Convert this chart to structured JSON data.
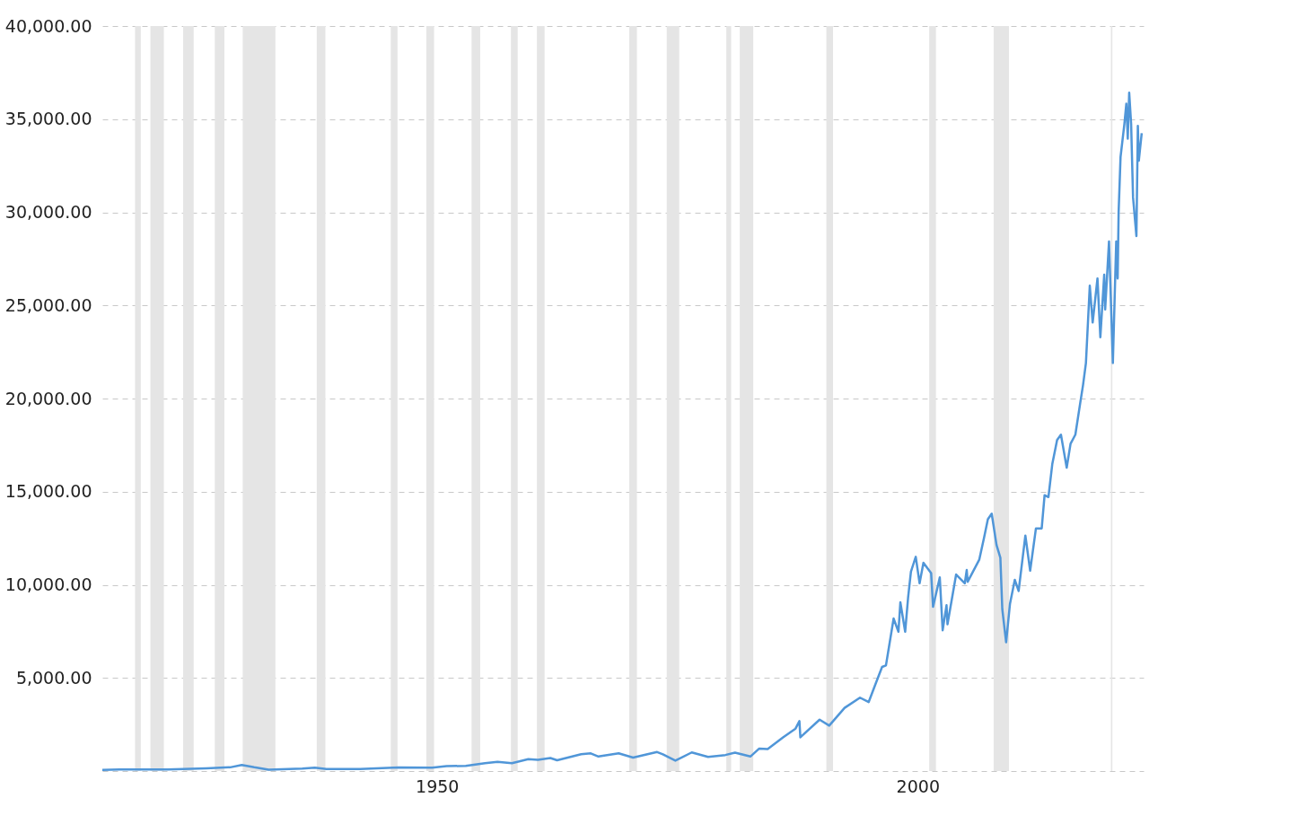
{
  "chart_data": {
    "type": "line",
    "x": [
      1915.2,
      1917,
      1919,
      1922,
      1926,
      1928.5,
      1929.7,
      1931,
      1932.5,
      1936,
      1937.3,
      1938.5,
      1942,
      1946,
      1949.5,
      1951,
      1953,
      1955,
      1956.3,
      1957.8,
      1959.5,
      1960.5,
      1961.8,
      1962.5,
      1965,
      1966,
      1966.8,
      1968.9,
      1970.4,
      1972.9,
      1973.5,
      1974.8,
      1976.5,
      1978.2,
      1980,
      1981,
      1982.6,
      1983.5,
      1984.4,
      1986.0,
      1987.3,
      1987.7,
      1987.8,
      1989.8,
      1990.8,
      1992.4,
      1994.0,
      1994.9,
      1995.6,
      1996.3,
      1996.7,
      1997.5,
      1998.0,
      1998.2,
      1998.7,
      1999.0,
      1999.3,
      1999.8,
      2000.2,
      2000.6,
      2001.4,
      2001.6,
      2002.3,
      2002.6,
      2003.0,
      2003.1,
      2004.0,
      2004.9,
      2005.1,
      2005.2,
      2006.4,
      2006.9,
      2007.3,
      2007.7,
      2008.2,
      2008.6,
      2008.8,
      2009.2,
      2009.6,
      2010.1,
      2010.5,
      2011.2,
      2011.7,
      2012.3,
      2012.9,
      2013.2,
      2013.6,
      2014.0,
      2014.5,
      2014.9,
      2015.5,
      2015.9,
      2016.4,
      2016.9,
      2017.2,
      2017.5,
      2017.9,
      2018.2,
      2018.7,
      2019.0,
      2019.4,
      2019.5,
      2019.9,
      2020.3,
      2020.5,
      2020.65,
      2020.8,
      2020.9,
      2021.1,
      2021.5,
      2021.7,
      2021.85,
      2022.0,
      2022.2,
      2022.4,
      2022.75,
      2022.9,
      2023.0,
      2023.3
    ],
    "series": [
      {
        "color": "#5096d8",
        "values": [
          60,
          80,
          90,
          80,
          140,
          200,
          330,
          200,
          70,
          130,
          180,
          110,
          110,
          190,
          180,
          260,
          280,
          420,
          490,
          420,
          640,
          600,
          700,
          580,
          900,
          950,
          780,
          950,
          720,
          1020,
          900,
          560,
          1000,
          760,
          860,
          990,
          780,
          1200,
          1180,
          1810,
          2280,
          2680,
          1810,
          2760,
          2440,
          3390,
          3940,
          3700,
          4650,
          5590,
          5670,
          8190,
          7480,
          9060,
          7480,
          9290,
          10710,
          11500,
          10080,
          11180,
          10630,
          8820,
          10400,
          7560,
          8900,
          7880,
          10550,
          10080,
          10790,
          10160,
          11340,
          12520,
          13520,
          13820,
          12140,
          11450,
          8690,
          6910,
          8980,
          10270,
          9670,
          12640,
          10760,
          13030,
          13030,
          14810,
          14710,
          16480,
          17770,
          18060,
          16290,
          17570,
          18060,
          19740,
          20730,
          21910,
          26060,
          24080,
          26450,
          23290,
          26650,
          24780,
          28430,
          21910,
          25660,
          28430,
          26450,
          30000,
          32970,
          34740,
          35830,
          33950,
          36420,
          34740,
          30800,
          28720,
          34640,
          32770,
          34250
        ]
      }
    ],
    "xlim": [
      1915.2,
      2023.5
    ],
    "xticks": [
      1950,
      2000
    ],
    "ylim": [
      0,
      40000
    ],
    "yticks": [
      {
        "value": 0,
        "label": null
      },
      {
        "value": 5000,
        "label": "5,000.00"
      },
      {
        "value": 10000,
        "label": "10,000.00"
      },
      {
        "value": 15000,
        "label": "15,000.00"
      },
      {
        "value": 20000,
        "label": "20,000.00"
      },
      {
        "value": 25000,
        "label": "25,000.00"
      },
      {
        "value": 30000,
        "label": "30,000.00"
      },
      {
        "value": 35000,
        "label": "35,000.00"
      },
      {
        "value": 40000,
        "label": "40,000.00"
      }
    ],
    "grid": "y",
    "bands": [
      {
        "axis": "x",
        "from": 1918.6,
        "to": 1919.2,
        "color": "#e5e5e5"
      },
      {
        "axis": "x",
        "from": 1920.2,
        "to": 1921.6,
        "color": "#e5e5e5"
      },
      {
        "axis": "x",
        "from": 1923.6,
        "to": 1924.7,
        "color": "#e5e5e5"
      },
      {
        "axis": "x",
        "from": 1926.9,
        "to": 1927.9,
        "color": "#e5e5e5"
      },
      {
        "axis": "x",
        "from": 1929.8,
        "to": 1933.2,
        "color": "#e5e5e5"
      },
      {
        "axis": "x",
        "from": 1937.5,
        "to": 1938.4,
        "color": "#e5e5e5"
      },
      {
        "axis": "x",
        "from": 1945.2,
        "to": 1945.9,
        "color": "#e5e5e5"
      },
      {
        "axis": "x",
        "from": 1948.9,
        "to": 1949.7,
        "color": "#e5e5e5"
      },
      {
        "axis": "x",
        "from": 1953.6,
        "to": 1954.5,
        "color": "#e5e5e5"
      },
      {
        "axis": "x",
        "from": 1957.7,
        "to": 1958.4,
        "color": "#e5e5e5"
      },
      {
        "axis": "x",
        "from": 1960.4,
        "to": 1961.2,
        "color": "#e5e5e5"
      },
      {
        "axis": "x",
        "from": 1970.0,
        "to": 1970.8,
        "color": "#e5e5e5"
      },
      {
        "axis": "x",
        "from": 1973.9,
        "to": 1975.2,
        "color": "#e5e5e5"
      },
      {
        "axis": "x",
        "from": 1980.1,
        "to": 1980.6,
        "color": "#e5e5e5"
      },
      {
        "axis": "x",
        "from": 1981.5,
        "to": 1982.9,
        "color": "#e5e5e5"
      },
      {
        "axis": "x",
        "from": 1990.5,
        "to": 1991.2,
        "color": "#e5e5e5"
      },
      {
        "axis": "x",
        "from": 2001.2,
        "to": 2001.9,
        "color": "#e5e5e5"
      },
      {
        "axis": "x",
        "from": 2007.9,
        "to": 2009.5,
        "color": "#e5e5e5"
      },
      {
        "axis": "x",
        "from": 2020.1,
        "to": 2020.25,
        "color": "#e5e5e5"
      }
    ]
  }
}
